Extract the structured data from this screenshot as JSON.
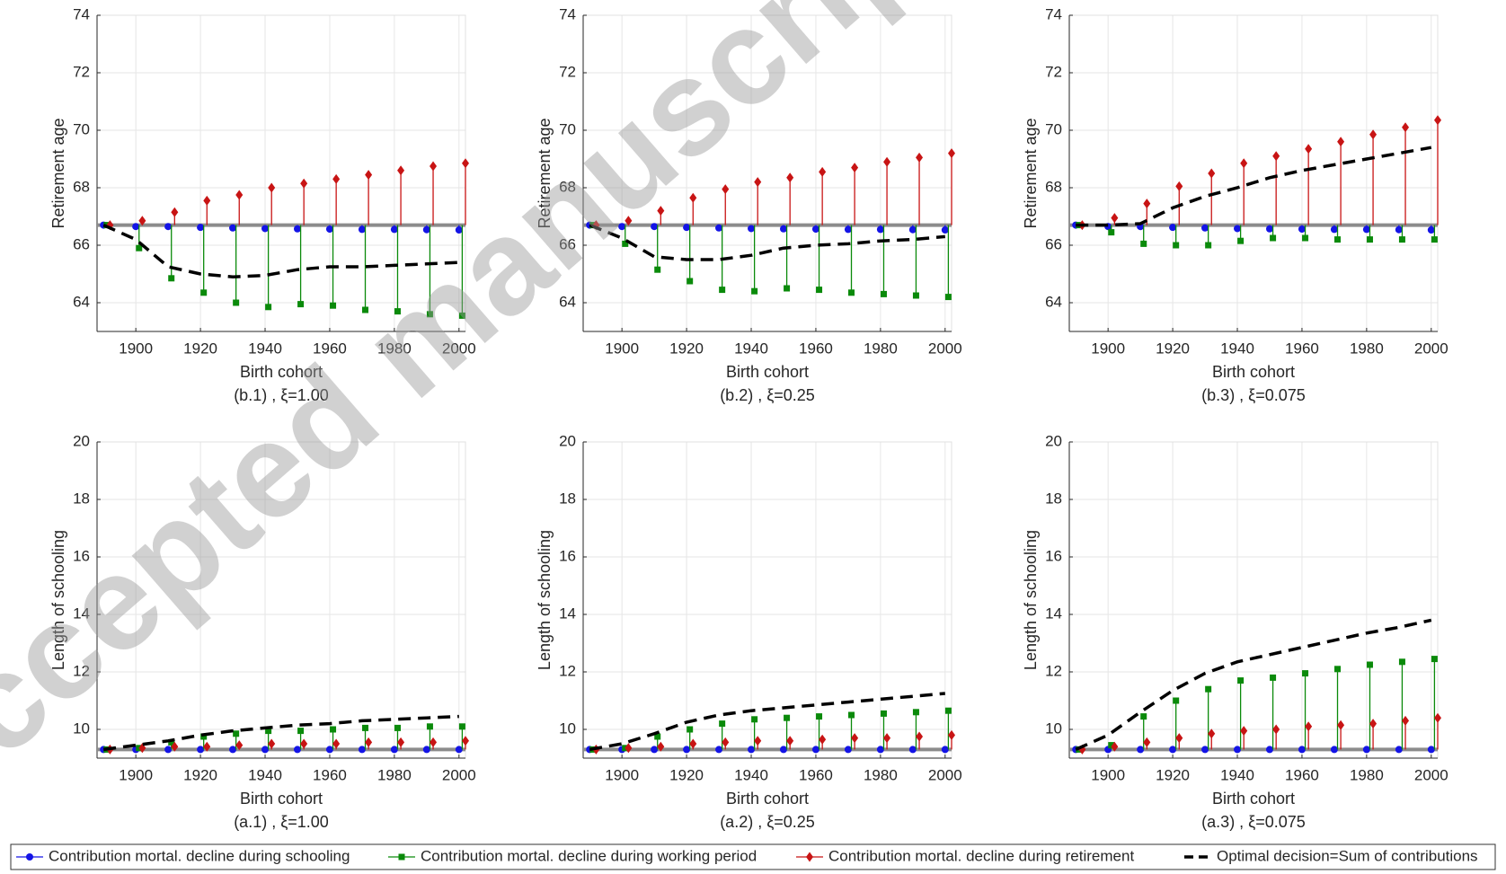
{
  "chart_data": [
    {
      "type": "stem",
      "title": "(b.1) , ξ=1.00",
      "xlabel": "Birth cohort",
      "ylabel": "Retirement age",
      "xlim": [
        1888,
        2002
      ],
      "xticks": [
        1900,
        1920,
        1940,
        1960,
        1980,
        2000
      ],
      "ylim": [
        63,
        74
      ],
      "yticks": [
        64,
        66,
        68,
        70,
        72,
        74
      ],
      "grid": true,
      "baseline": 66.7,
      "series": [
        {
          "name": "Contribution mortal. decline during schooling",
          "color": "#1414e6",
          "marker": "circle",
          "x": [
            1890,
            1900,
            1910,
            1920,
            1930,
            1940,
            1950,
            1960,
            1970,
            1980,
            1990,
            2000
          ],
          "values": [
            66.7,
            66.65,
            66.65,
            66.62,
            66.6,
            66.58,
            66.57,
            66.56,
            66.55,
            66.55,
            66.54,
            66.53
          ]
        },
        {
          "name": "Contribution mortal. decline during working period",
          "color": "#0a8a0a",
          "marker": "square",
          "x": [
            1891,
            1901,
            1911,
            1921,
            1931,
            1941,
            1951,
            1961,
            1971,
            1981,
            1991,
            2001
          ],
          "values": [
            66.7,
            65.9,
            64.85,
            64.35,
            64.0,
            63.85,
            63.95,
            63.9,
            63.75,
            63.7,
            63.6,
            63.55
          ]
        },
        {
          "name": "Contribution mortal. decline during retirement",
          "color": "#c81414",
          "marker": "diamond",
          "x": [
            1892,
            1902,
            1912,
            1922,
            1932,
            1942,
            1952,
            1962,
            1972,
            1982,
            1992,
            2002
          ],
          "values": [
            66.7,
            66.85,
            67.15,
            67.55,
            67.75,
            68.0,
            68.15,
            68.3,
            68.45,
            68.6,
            68.75,
            68.85
          ]
        },
        {
          "name": "Optimal decision=Sum of contributions",
          "color": "#000000",
          "marker": "none",
          "linestyle": "dashed",
          "x": [
            1890,
            1900,
            1910,
            1920,
            1930,
            1940,
            1950,
            1960,
            1970,
            1980,
            1990,
            2000
          ],
          "values": [
            66.7,
            66.2,
            65.25,
            65.0,
            64.9,
            64.95,
            65.15,
            65.25,
            65.25,
            65.3,
            65.35,
            65.4
          ]
        }
      ]
    },
    {
      "type": "stem",
      "title": "(b.2) , ξ=0.25",
      "xlabel": "Birth cohort",
      "ylabel": "Retirement age",
      "xlim": [
        1888,
        2002
      ],
      "xticks": [
        1900,
        1920,
        1940,
        1960,
        1980,
        2000
      ],
      "ylim": [
        63,
        74
      ],
      "yticks": [
        64,
        66,
        68,
        70,
        72,
        74
      ],
      "grid": true,
      "baseline": 66.7,
      "series": [
        {
          "name": "Contribution mortal. decline during schooling",
          "color": "#1414e6",
          "marker": "circle",
          "x": [
            1890,
            1900,
            1910,
            1920,
            1930,
            1940,
            1950,
            1960,
            1970,
            1980,
            1990,
            2000
          ],
          "values": [
            66.7,
            66.65,
            66.65,
            66.62,
            66.6,
            66.58,
            66.57,
            66.56,
            66.55,
            66.55,
            66.54,
            66.53
          ]
        },
        {
          "name": "Contribution mortal. decline during working period",
          "color": "#0a8a0a",
          "marker": "square",
          "x": [
            1891,
            1901,
            1911,
            1921,
            1931,
            1941,
            1951,
            1961,
            1971,
            1981,
            1991,
            2001
          ],
          "values": [
            66.7,
            66.05,
            65.15,
            64.75,
            64.45,
            64.4,
            64.5,
            64.45,
            64.35,
            64.3,
            64.25,
            64.2
          ]
        },
        {
          "name": "Contribution mortal. decline during retirement",
          "color": "#c81414",
          "marker": "diamond",
          "x": [
            1892,
            1902,
            1912,
            1922,
            1932,
            1942,
            1952,
            1962,
            1972,
            1982,
            1992,
            2002
          ],
          "values": [
            66.7,
            66.85,
            67.2,
            67.65,
            67.95,
            68.2,
            68.35,
            68.55,
            68.7,
            68.9,
            69.05,
            69.2
          ]
        },
        {
          "name": "Optimal decision=Sum of contributions",
          "color": "#000000",
          "marker": "none",
          "linestyle": "dashed",
          "x": [
            1890,
            1900,
            1910,
            1920,
            1930,
            1940,
            1950,
            1960,
            1970,
            1980,
            1990,
            2000
          ],
          "values": [
            66.7,
            66.25,
            65.6,
            65.5,
            65.5,
            65.65,
            65.9,
            66.0,
            66.05,
            66.15,
            66.2,
            66.3
          ]
        }
      ]
    },
    {
      "type": "stem",
      "title": "(b.3) , ξ=0.075",
      "xlabel": "Birth cohort",
      "ylabel": "Retirement age",
      "xlim": [
        1888,
        2002
      ],
      "xticks": [
        1900,
        1920,
        1940,
        1960,
        1980,
        2000
      ],
      "ylim": [
        63,
        74
      ],
      "yticks": [
        64,
        66,
        68,
        70,
        72,
        74
      ],
      "grid": true,
      "baseline": 66.7,
      "series": [
        {
          "name": "Contribution mortal. decline during schooling",
          "color": "#1414e6",
          "marker": "circle",
          "x": [
            1890,
            1900,
            1910,
            1920,
            1930,
            1940,
            1950,
            1960,
            1970,
            1980,
            1990,
            2000
          ],
          "values": [
            66.7,
            66.65,
            66.65,
            66.62,
            66.6,
            66.58,
            66.57,
            66.56,
            66.55,
            66.55,
            66.54,
            66.53
          ]
        },
        {
          "name": "Contribution mortal. decline during working period",
          "color": "#0a8a0a",
          "marker": "square",
          "x": [
            1891,
            1901,
            1911,
            1921,
            1931,
            1941,
            1951,
            1961,
            1971,
            1981,
            1991,
            2001
          ],
          "values": [
            66.7,
            66.45,
            66.05,
            66.0,
            66.0,
            66.15,
            66.25,
            66.25,
            66.2,
            66.2,
            66.2,
            66.2
          ]
        },
        {
          "name": "Contribution mortal. decline during retirement",
          "color": "#c81414",
          "marker": "diamond",
          "x": [
            1892,
            1902,
            1912,
            1922,
            1932,
            1942,
            1952,
            1962,
            1972,
            1982,
            1992,
            2002
          ],
          "values": [
            66.7,
            66.95,
            67.45,
            68.05,
            68.5,
            68.85,
            69.1,
            69.35,
            69.6,
            69.85,
            70.1,
            70.35
          ]
        },
        {
          "name": "Optimal decision=Sum of contributions",
          "color": "#000000",
          "marker": "none",
          "linestyle": "dashed",
          "x": [
            1890,
            1900,
            1910,
            1920,
            1930,
            1940,
            1950,
            1960,
            1970,
            1980,
            1990,
            2000
          ],
          "values": [
            66.7,
            66.7,
            66.75,
            67.3,
            67.7,
            68.0,
            68.35,
            68.6,
            68.8,
            69.0,
            69.2,
            69.4
          ]
        }
      ]
    },
    {
      "type": "stem",
      "title": "(a.1) , ξ=1.00",
      "xlabel": "Birth cohort",
      "ylabel": "Length of schooling",
      "xlim": [
        1888,
        2002
      ],
      "xticks": [
        1900,
        1920,
        1940,
        1960,
        1980,
        2000
      ],
      "ylim": [
        9,
        20
      ],
      "yticks": [
        10,
        12,
        14,
        16,
        18,
        20
      ],
      "grid": true,
      "baseline": 9.3,
      "series": [
        {
          "name": "Contribution mortal. decline during schooling",
          "color": "#1414e6",
          "marker": "circle",
          "x": [
            1890,
            1900,
            1910,
            1920,
            1930,
            1940,
            1950,
            1960,
            1970,
            1980,
            1990,
            2000
          ],
          "values": [
            9.3,
            9.3,
            9.3,
            9.3,
            9.3,
            9.3,
            9.3,
            9.3,
            9.3,
            9.3,
            9.3,
            9.3
          ]
        },
        {
          "name": "Contribution mortal. decline during working period",
          "color": "#0a8a0a",
          "marker": "square",
          "x": [
            1891,
            1901,
            1911,
            1921,
            1931,
            1941,
            1951,
            1961,
            1971,
            1981,
            1991,
            2001
          ],
          "values": [
            9.3,
            9.35,
            9.55,
            9.75,
            9.85,
            9.95,
            9.95,
            10.0,
            10.05,
            10.05,
            10.1,
            10.1
          ]
        },
        {
          "name": "Contribution mortal. decline during retirement",
          "color": "#c81414",
          "marker": "diamond",
          "x": [
            1892,
            1902,
            1912,
            1922,
            1932,
            1942,
            1952,
            1962,
            1972,
            1982,
            1992,
            2002
          ],
          "values": [
            9.3,
            9.35,
            9.4,
            9.4,
            9.45,
            9.5,
            9.5,
            9.5,
            9.55,
            9.55,
            9.55,
            9.6
          ]
        },
        {
          "name": "Optimal decision=Sum of contributions",
          "color": "#000000",
          "marker": "none",
          "linestyle": "dashed",
          "x": [
            1890,
            1900,
            1910,
            1920,
            1930,
            1940,
            1950,
            1960,
            1970,
            1980,
            1990,
            2000
          ],
          "values": [
            9.3,
            9.45,
            9.6,
            9.8,
            9.95,
            10.05,
            10.15,
            10.2,
            10.3,
            10.35,
            10.4,
            10.45
          ]
        }
      ]
    },
    {
      "type": "stem",
      "title": "(a.2) , ξ=0.25",
      "xlabel": "Birth cohort",
      "ylabel": "Length of schooling",
      "xlim": [
        1888,
        2002
      ],
      "xticks": [
        1900,
        1920,
        1940,
        1960,
        1980,
        2000
      ],
      "ylim": [
        9,
        20
      ],
      "yticks": [
        10,
        12,
        14,
        16,
        18,
        20
      ],
      "grid": true,
      "baseline": 9.3,
      "series": [
        {
          "name": "Contribution mortal. decline during schooling",
          "color": "#1414e6",
          "marker": "circle",
          "x": [
            1890,
            1900,
            1910,
            1920,
            1930,
            1940,
            1950,
            1960,
            1970,
            1980,
            1990,
            2000
          ],
          "values": [
            9.3,
            9.3,
            9.3,
            9.3,
            9.3,
            9.3,
            9.3,
            9.3,
            9.3,
            9.3,
            9.3,
            9.3
          ]
        },
        {
          "name": "Contribution mortal. decline during working period",
          "color": "#0a8a0a",
          "marker": "square",
          "x": [
            1891,
            1901,
            1911,
            1921,
            1931,
            1941,
            1951,
            1961,
            1971,
            1981,
            1991,
            2001
          ],
          "values": [
            9.3,
            9.35,
            9.75,
            10.0,
            10.2,
            10.35,
            10.4,
            10.45,
            10.5,
            10.55,
            10.6,
            10.65
          ]
        },
        {
          "name": "Contribution mortal. decline during retirement",
          "color": "#c81414",
          "marker": "diamond",
          "x": [
            1892,
            1902,
            1912,
            1922,
            1932,
            1942,
            1952,
            1962,
            1972,
            1982,
            1992,
            2002
          ],
          "values": [
            9.3,
            9.35,
            9.4,
            9.5,
            9.55,
            9.6,
            9.6,
            9.65,
            9.7,
            9.7,
            9.75,
            9.8
          ]
        },
        {
          "name": "Optimal decision=Sum of contributions",
          "color": "#000000",
          "marker": "none",
          "linestyle": "dashed",
          "x": [
            1890,
            1900,
            1910,
            1920,
            1930,
            1940,
            1950,
            1960,
            1970,
            1980,
            1990,
            2000
          ],
          "values": [
            9.3,
            9.5,
            9.85,
            10.25,
            10.5,
            10.65,
            10.75,
            10.85,
            10.95,
            11.05,
            11.15,
            11.25
          ]
        }
      ]
    },
    {
      "type": "stem",
      "title": "(a.3) , ξ=0.075",
      "xlabel": "Birth cohort",
      "ylabel": "Length of schooling",
      "xlim": [
        1888,
        2002
      ],
      "xticks": [
        1900,
        1920,
        1940,
        1960,
        1980,
        2000
      ],
      "ylim": [
        9,
        20
      ],
      "yticks": [
        10,
        12,
        14,
        16,
        18,
        20
      ],
      "grid": true,
      "baseline": 9.3,
      "series": [
        {
          "name": "Contribution mortal. decline during schooling",
          "color": "#1414e6",
          "marker": "circle",
          "x": [
            1890,
            1900,
            1910,
            1920,
            1930,
            1940,
            1950,
            1960,
            1970,
            1980,
            1990,
            2000
          ],
          "values": [
            9.3,
            9.3,
            9.3,
            9.3,
            9.3,
            9.3,
            9.3,
            9.3,
            9.3,
            9.3,
            9.3,
            9.3
          ]
        },
        {
          "name": "Contribution mortal. decline during working period",
          "color": "#0a8a0a",
          "marker": "square",
          "x": [
            1891,
            1901,
            1911,
            1921,
            1931,
            1941,
            1951,
            1961,
            1971,
            1981,
            1991,
            2001
          ],
          "values": [
            9.3,
            9.45,
            10.45,
            11.0,
            11.4,
            11.7,
            11.8,
            11.95,
            12.1,
            12.25,
            12.35,
            12.45
          ]
        },
        {
          "name": "Contribution mortal. decline during retirement",
          "color": "#c81414",
          "marker": "diamond",
          "x": [
            1892,
            1902,
            1912,
            1922,
            1932,
            1942,
            1952,
            1962,
            1972,
            1982,
            1992,
            2002
          ],
          "values": [
            9.3,
            9.4,
            9.55,
            9.7,
            9.85,
            9.95,
            10.0,
            10.1,
            10.15,
            10.2,
            10.3,
            10.4
          ]
        },
        {
          "name": "Optimal decision=Sum of contributions",
          "color": "#000000",
          "marker": "none",
          "linestyle": "dashed",
          "x": [
            1890,
            1900,
            1910,
            1920,
            1930,
            1940,
            1950,
            1960,
            1970,
            1980,
            1990,
            2000
          ],
          "values": [
            9.3,
            9.8,
            10.6,
            11.35,
            11.95,
            12.35,
            12.6,
            12.85,
            13.1,
            13.35,
            13.55,
            13.8
          ]
        }
      ]
    }
  ],
  "watermark": "Accepted manuscript"
}
